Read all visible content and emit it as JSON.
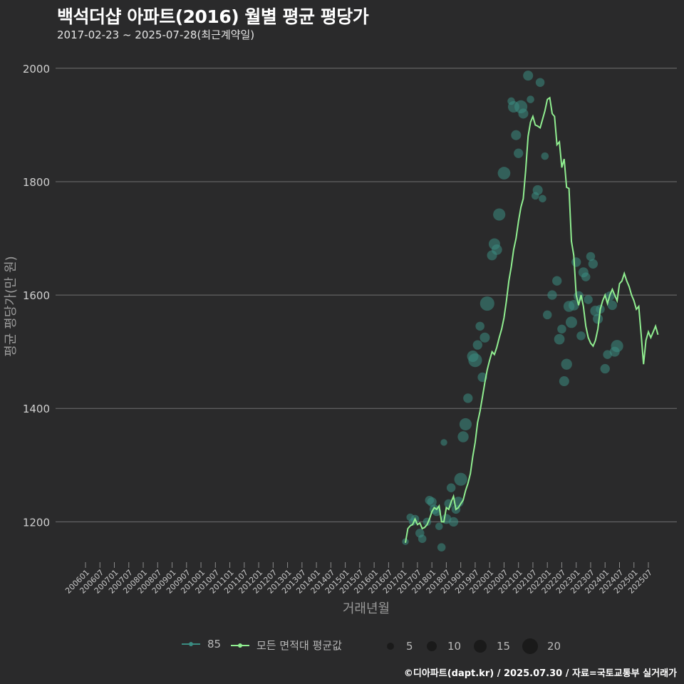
{
  "header": {
    "title": "백석더샵 아파트(2016) 월별 평균 평당가",
    "subtitle": "2017-02-23 ~ 2025-07-28(최근계약일)"
  },
  "caption": "©디아파트(dapt.kr) / 2025.07.30 / 자료=국토교통부 실거래가",
  "colors": {
    "background": "#2a2a2b",
    "grid": "#707070",
    "series_85": "#3a8c82",
    "series_avg": "#90ee90",
    "size_legend": "#1a1a1a"
  },
  "legend": {
    "series": [
      {
        "label": "85",
        "color": "#3a8c82"
      },
      {
        "label": "모든 면적대 평균값",
        "color": "#90ee90"
      }
    ],
    "sizes": [
      {
        "label": "5",
        "size": 5
      },
      {
        "label": "10",
        "size": 10
      },
      {
        "label": "15",
        "size": 15
      },
      {
        "label": "20",
        "size": 20
      }
    ]
  },
  "chart_data": {
    "type": "line",
    "title": "백석더샵 아파트(2016) 월별 평균 평당가",
    "xlabel": "거래년월",
    "ylabel": "평균 평당가(만 원)",
    "ylim": [
      1115,
      2045
    ],
    "yticks": [
      1200,
      1400,
      1600,
      1800,
      2000
    ],
    "grid": true,
    "legend_position": "bottom",
    "x_categories": [
      "200601",
      "200607",
      "200701",
      "200707",
      "200801",
      "200807",
      "200901",
      "200907",
      "201001",
      "201007",
      "201101",
      "201107",
      "201201",
      "201207",
      "201301",
      "201307",
      "201401",
      "201407",
      "201501",
      "201507",
      "201601",
      "201607",
      "201701",
      "201707",
      "201801",
      "201807",
      "201901",
      "201907",
      "202001",
      "202007",
      "202101",
      "202107",
      "202201",
      "202207",
      "202301",
      "202307",
      "202401",
      "202407",
      "202501",
      "202507"
    ],
    "series": [
      {
        "name": "모든 면적대 평균값",
        "type": "line",
        "start": "201702",
        "values": [
          1163,
          1188,
          1193,
          1195,
          1205,
          1195,
          1198,
          1188,
          1190,
          1195,
          1205,
          1218,
          1225,
          1222,
          1228,
          1200,
          1200,
          1225,
          1222,
          1235,
          1245,
          1222,
          1225,
          1232,
          1238,
          1255,
          1268,
          1285,
          1315,
          1340,
          1375,
          1395,
          1420,
          1445,
          1468,
          1485,
          1500,
          1495,
          1508,
          1525,
          1540,
          1560,
          1590,
          1625,
          1650,
          1680,
          1700,
          1730,
          1755,
          1770,
          1820,
          1880,
          1905,
          1915,
          1900,
          1898,
          1895,
          1910,
          1925,
          1945,
          1948,
          1920,
          1915,
          1865,
          1870,
          1825,
          1840,
          1790,
          1788,
          1695,
          1670,
          1600,
          1582,
          1600,
          1580,
          1545,
          1525,
          1515,
          1510,
          1520,
          1540,
          1575,
          1590,
          1600,
          1585,
          1600,
          1610,
          1600,
          1590,
          1620,
          1625,
          1638,
          1625,
          1615,
          1600,
          1590,
          1575,
          1580,
          1530,
          1478,
          1520,
          1535,
          1525,
          1535,
          1545,
          1530
        ]
      },
      {
        "name": "85",
        "type": "scatter",
        "points": [
          {
            "x": "201702",
            "y": 1165,
            "n": 2
          },
          {
            "x": "201704",
            "y": 1208,
            "n": 3
          },
          {
            "x": "201705",
            "y": 1200,
            "n": 3
          },
          {
            "x": "201706",
            "y": 1205,
            "n": 4
          },
          {
            "x": "201708",
            "y": 1180,
            "n": 5
          },
          {
            "x": "201709",
            "y": 1170,
            "n": 4
          },
          {
            "x": "201711",
            "y": 1200,
            "n": 4
          },
          {
            "x": "201712",
            "y": 1238,
            "n": 5
          },
          {
            "x": "201801",
            "y": 1235,
            "n": 6
          },
          {
            "x": "201802",
            "y": 1222,
            "n": 6
          },
          {
            "x": "201803",
            "y": 1218,
            "n": 5
          },
          {
            "x": "201804",
            "y": 1192,
            "n": 3
          },
          {
            "x": "201805",
            "y": 1155,
            "n": 4
          },
          {
            "x": "201806",
            "y": 1340,
            "n": 2
          },
          {
            "x": "201807",
            "y": 1205,
            "n": 7
          },
          {
            "x": "201808",
            "y": 1232,
            "n": 5
          },
          {
            "x": "201809",
            "y": 1260,
            "n": 5
          },
          {
            "x": "201810",
            "y": 1200,
            "n": 6
          },
          {
            "x": "201811",
            "y": 1222,
            "n": 5
          },
          {
            "x": "201812",
            "y": 1235,
            "n": 8
          },
          {
            "x": "201901",
            "y": 1275,
            "n": 14
          },
          {
            "x": "201902",
            "y": 1350,
            "n": 9
          },
          {
            "x": "201903",
            "y": 1372,
            "n": 12
          },
          {
            "x": "201904",
            "y": 1418,
            "n": 6
          },
          {
            "x": "201906",
            "y": 1492,
            "n": 10
          },
          {
            "x": "201907",
            "y": 1485,
            "n": 16
          },
          {
            "x": "201908",
            "y": 1512,
            "n": 6
          },
          {
            "x": "201909",
            "y": 1545,
            "n": 5
          },
          {
            "x": "201910",
            "y": 1455,
            "n": 6
          },
          {
            "x": "201911",
            "y": 1525,
            "n": 7
          },
          {
            "x": "201912",
            "y": 1585,
            "n": 18
          },
          {
            "x": "202002",
            "y": 1670,
            "n": 7
          },
          {
            "x": "202003",
            "y": 1690,
            "n": 10
          },
          {
            "x": "202004",
            "y": 1680,
            "n": 8
          },
          {
            "x": "202005",
            "y": 1742,
            "n": 12
          },
          {
            "x": "202007",
            "y": 1815,
            "n": 13
          },
          {
            "x": "202010",
            "y": 1942,
            "n": 3
          },
          {
            "x": "202011",
            "y": 1932,
            "n": 10
          },
          {
            "x": "202012",
            "y": 1882,
            "n": 7
          },
          {
            "x": "202101",
            "y": 1850,
            "n": 6
          },
          {
            "x": "202102",
            "y": 1932,
            "n": 14
          },
          {
            "x": "202103",
            "y": 1920,
            "n": 7
          },
          {
            "x": "202105",
            "y": 1987,
            "n": 7
          },
          {
            "x": "202106",
            "y": 1945,
            "n": 3
          },
          {
            "x": "202108",
            "y": 1775,
            "n": 3
          },
          {
            "x": "202109",
            "y": 1785,
            "n": 7
          },
          {
            "x": "202110",
            "y": 1975,
            "n": 5
          },
          {
            "x": "202111",
            "y": 1770,
            "n": 3
          },
          {
            "x": "202112",
            "y": 1845,
            "n": 3
          },
          {
            "x": "202201",
            "y": 1565,
            "n": 5
          },
          {
            "x": "202203",
            "y": 1600,
            "n": 6
          },
          {
            "x": "202205",
            "y": 1625,
            "n": 6
          },
          {
            "x": "202206",
            "y": 1522,
            "n": 8
          },
          {
            "x": "202207",
            "y": 1540,
            "n": 5
          },
          {
            "x": "202208",
            "y": 1448,
            "n": 7
          },
          {
            "x": "202209",
            "y": 1478,
            "n": 9
          },
          {
            "x": "202210",
            "y": 1580,
            "n": 9
          },
          {
            "x": "202211",
            "y": 1552,
            "n": 10
          },
          {
            "x": "202212",
            "y": 1582,
            "n": 8
          },
          {
            "x": "202301",
            "y": 1658,
            "n": 6
          },
          {
            "x": "202302",
            "y": 1598,
            "n": 7
          },
          {
            "x": "202303",
            "y": 1528,
            "n": 5
          },
          {
            "x": "202304",
            "y": 1640,
            "n": 7
          },
          {
            "x": "202305",
            "y": 1632,
            "n": 5
          },
          {
            "x": "202306",
            "y": 1592,
            "n": 5
          },
          {
            "x": "202307",
            "y": 1668,
            "n": 5
          },
          {
            "x": "202308",
            "y": 1655,
            "n": 6
          },
          {
            "x": "202309",
            "y": 1572,
            "n": 8
          },
          {
            "x": "202310",
            "y": 1558,
            "n": 7
          },
          {
            "x": "202311",
            "y": 1575,
            "n": 5
          },
          {
            "x": "202401",
            "y": 1470,
            "n": 6
          },
          {
            "x": "202402",
            "y": 1495,
            "n": 5
          },
          {
            "x": "202403",
            "y": 1598,
            "n": 6
          },
          {
            "x": "202404",
            "y": 1582,
            "n": 6
          },
          {
            "x": "202405",
            "y": 1500,
            "n": 7
          },
          {
            "x": "202406",
            "y": 1510,
            "n": 12
          }
        ]
      }
    ]
  }
}
